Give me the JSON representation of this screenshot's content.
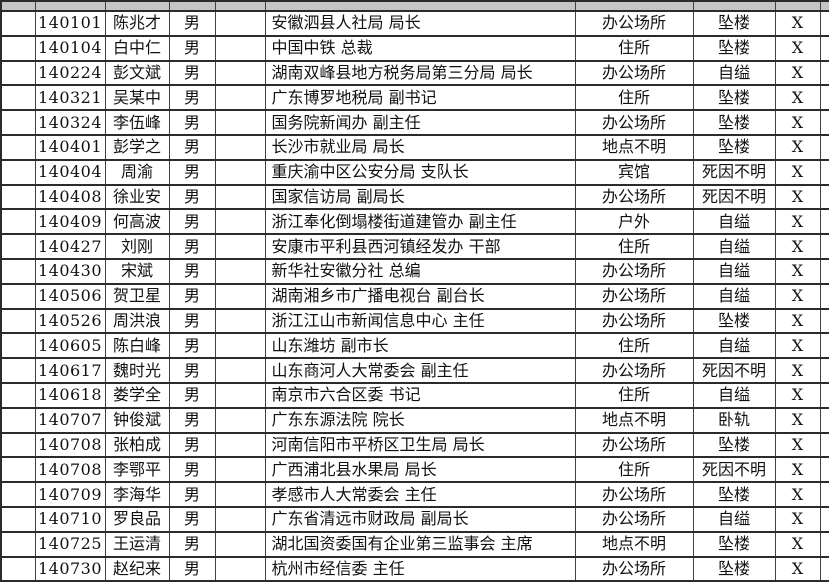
{
  "colors": {
    "grid_line": "#424242",
    "heavy_line": "#2b2b2b",
    "clipped_top_row_fill": "#c5c5c5",
    "background": "#ffffff",
    "text": "#111111"
  },
  "table": {
    "columns": [
      "blank",
      "id",
      "name",
      "gender",
      "blank",
      "org_title",
      "location",
      "cause",
      "mark"
    ],
    "rows": [
      {
        "id": "140101",
        "name": "陈兆才",
        "gender": "男",
        "org_title": "安徽泗县人社局 局长",
        "location": "办公场所",
        "cause": "坠楼",
        "mark": "X"
      },
      {
        "id": "140104",
        "name": "白中仁",
        "gender": "男",
        "org_title": "中国中铁 总裁",
        "location": "住所",
        "cause": "坠楼",
        "mark": "X"
      },
      {
        "id": "140224",
        "name": "彭文斌",
        "gender": "男",
        "org_title": "湖南双峰县地方税务局第三分局 局长",
        "location": "办公场所",
        "cause": "自缢",
        "mark": "X"
      },
      {
        "id": "140321",
        "name": "吴某中",
        "gender": "男",
        "org_title": "广东博罗地税局 副书记",
        "location": "住所",
        "cause": "坠楼",
        "mark": "X"
      },
      {
        "id": "140324",
        "name": "李伍峰",
        "gender": "男",
        "org_title": "国务院新闻办 副主任",
        "location": "办公场所",
        "cause": "坠楼",
        "mark": "X"
      },
      {
        "id": "140401",
        "name": "彭学之",
        "gender": "男",
        "org_title": "长沙市就业局 局长",
        "location": "地点不明",
        "cause": "坠楼",
        "mark": "X"
      },
      {
        "id": "140404",
        "name": "周渝",
        "gender": "男",
        "org_title": "重庆渝中区公安分局 支队长",
        "location": "宾馆",
        "cause": "死因不明",
        "mark": "X"
      },
      {
        "id": "140408",
        "name": "徐业安",
        "gender": "男",
        "org_title": "国家信访局 副局长",
        "location": "办公场所",
        "cause": "死因不明",
        "mark": "X"
      },
      {
        "id": "140409",
        "name": "何高波",
        "gender": "男",
        "org_title": "浙江奉化倒塌楼街道建管办 副主任",
        "location": "户外",
        "cause": "自缢",
        "mark": "X"
      },
      {
        "id": "140427",
        "name": "刘刚",
        "gender": "男",
        "org_title": "安康市平利县西河镇经发办 干部",
        "location": "住所",
        "cause": "自缢",
        "mark": "X"
      },
      {
        "id": "140430",
        "name": "宋斌",
        "gender": "男",
        "org_title": "新华社安徽分社 总编",
        "location": "办公场所",
        "cause": "自缢",
        "mark": "X"
      },
      {
        "id": "140506",
        "name": "贺卫星",
        "gender": "男",
        "org_title": "湖南湘乡市广播电视台 副台长",
        "location": "办公场所",
        "cause": "自缢",
        "mark": "X"
      },
      {
        "id": "140526",
        "name": "周洪浪",
        "gender": "男",
        "org_title": "浙江江山市新闻信息中心 主任",
        "location": "办公场所",
        "cause": "坠楼",
        "mark": "X"
      },
      {
        "id": "140605",
        "name": "陈白峰",
        "gender": "男",
        "org_title": "山东潍坊 副市长",
        "location": "住所",
        "cause": "自缢",
        "mark": "X"
      },
      {
        "id": "140617",
        "name": "魏时光",
        "gender": "男",
        "org_title": "山东商河人大常委会 副主任",
        "location": "办公场所",
        "cause": "死因不明",
        "mark": "X"
      },
      {
        "id": "140618",
        "name": "娄学全",
        "gender": "男",
        "org_title": "南京市六合区委 书记",
        "location": "住所",
        "cause": "自缢",
        "mark": "X"
      },
      {
        "id": "140707",
        "name": "钟俊斌",
        "gender": "男",
        "org_title": "广东东源法院 院长",
        "location": "地点不明",
        "cause": "卧轨",
        "mark": "X"
      },
      {
        "id": "140708",
        "name": "张柏成",
        "gender": "男",
        "org_title": "河南信阳市平桥区卫生局 局长",
        "location": "办公场所",
        "cause": "坠楼",
        "mark": "X"
      },
      {
        "id": "140708",
        "name": "李鄂平",
        "gender": "男",
        "org_title": "广西浦北县水果局 局长",
        "location": "住所",
        "cause": "死因不明",
        "mark": "X"
      },
      {
        "id": "140709",
        "name": "李海华",
        "gender": "男",
        "org_title": "孝感市人大常委会 主任",
        "location": "办公场所",
        "cause": "坠楼",
        "mark": "X"
      },
      {
        "id": "140710",
        "name": "罗良品",
        "gender": "男",
        "org_title": "广东省清远市财政局 副局长",
        "location": "办公场所",
        "cause": "自缢",
        "mark": "X"
      },
      {
        "id": "140725",
        "name": "王运清",
        "gender": "男",
        "org_title": "湖北国资委国有企业第三监事会 主席",
        "location": "地点不明",
        "cause": "坠楼",
        "mark": "X"
      },
      {
        "id": "140730",
        "name": "赵纪来",
        "gender": "男",
        "org_title": "杭州市经信委 主任",
        "location": "办公场所",
        "cause": "坠楼",
        "mark": "X"
      }
    ]
  }
}
